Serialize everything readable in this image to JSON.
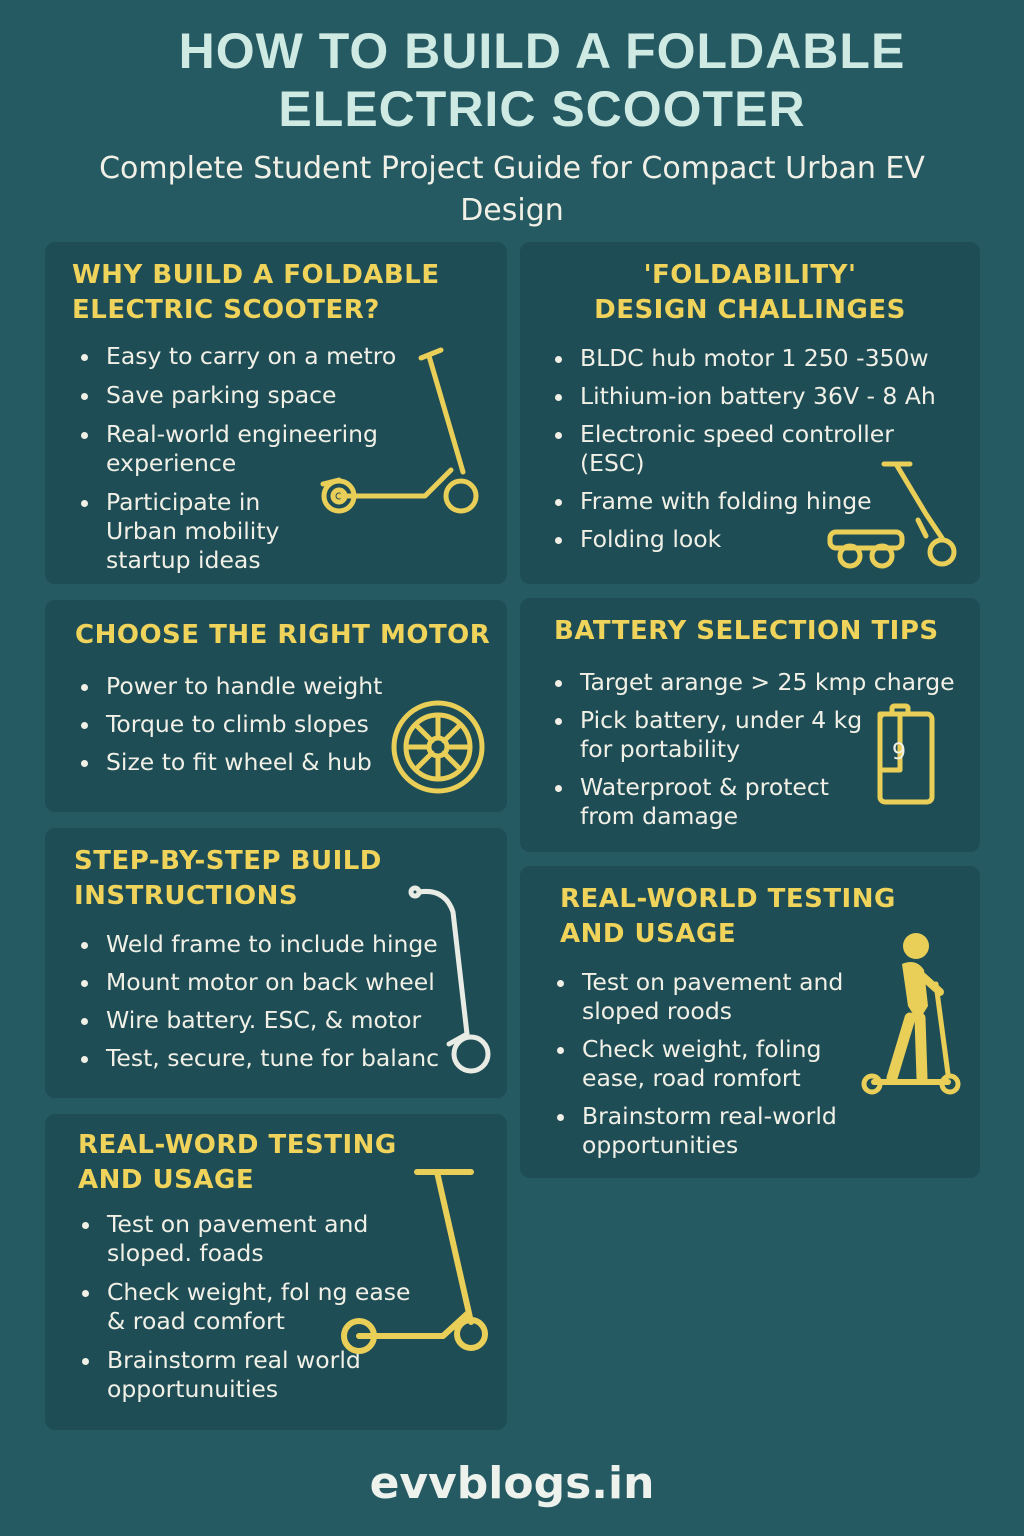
{
  "header": {
    "title_line1": "HOW TO BUILD A FOLDABLE",
    "title_line2": "ELECTRIC SCOOTER",
    "subtitle": "Complete Student Project Guide for Compact Urban EV Design"
  },
  "colors": {
    "background": "#255a63",
    "card": "#1f4d56",
    "heading": "#f0d35a",
    "title": "#cfe9e3",
    "text": "#f1f0e6"
  },
  "cards": {
    "why": {
      "title_line1": "WHY BUILD A FOLDABLE",
      "title_line2": "ELECTRIC SCOOTER?",
      "items": [
        "Easy to carry on a metro",
        "Save parking space",
        "Real-world engineering experience",
        "Participate in Urban mobility startup ideas"
      ],
      "icon": "scooter-icon"
    },
    "challenges": {
      "title_line1": "'FOLDABILITY'",
      "title_line2": "DESIGN CHALLINGES",
      "items": [
        "BLDC hub motor 1 250 -350w",
        "Lithium-ion battery 36V - 8 Ah",
        "Electronic speed controller (ESC)",
        "Frame with folding hinge",
        "Folding look"
      ],
      "icon": "folded-scooter-icon"
    },
    "motor": {
      "title": "CHOOSE THE RIGHT MOTOR",
      "items": [
        "Power to handle weight",
        "Torque to climb slopes",
        "Size to fit wheel & hub"
      ],
      "icon": "wheel-icon"
    },
    "battery": {
      "title": "BATTERY SELECTION TIPS",
      "items": [
        "Target arange > 25 kmp charge",
        "Pick battery, under 4 kg for portability",
        "Waterproot &  protect from damage"
      ],
      "icon": "battery-icon",
      "icon_label": "9"
    },
    "steps": {
      "title_line1": "STEP-BY-STEP BUILD",
      "title_line2": "INSTRUCTIONS",
      "items": [
        "Weld frame to include hinge",
        "Mount motor on back wheel",
        "Wire battery. ESC, & motor",
        "Test, secure, tune for balanc"
      ],
      "icon": "scooter-stem-icon"
    },
    "testing_right": {
      "title_line1": "REAL-WORLD TESTING",
      "title_line2": "AND USAGE",
      "items": [
        "Test on pavement and sloped roods",
        "Check weight, foling ease, road romfort",
        "Brainstorm real-world opportunities"
      ],
      "icon": "rider-icon"
    },
    "testing_left": {
      "title_line1": "REAL-WORD TESTING",
      "title_line2": "AND USAGE",
      "items": [
        "Test on pavement and sloped. foads",
        "Check weight, fol ng ease & road comfort",
        "Brainstorm real world opportunuities"
      ],
      "icon": "scooter-icon"
    }
  },
  "footer": {
    "site": "evvblogs.in"
  }
}
